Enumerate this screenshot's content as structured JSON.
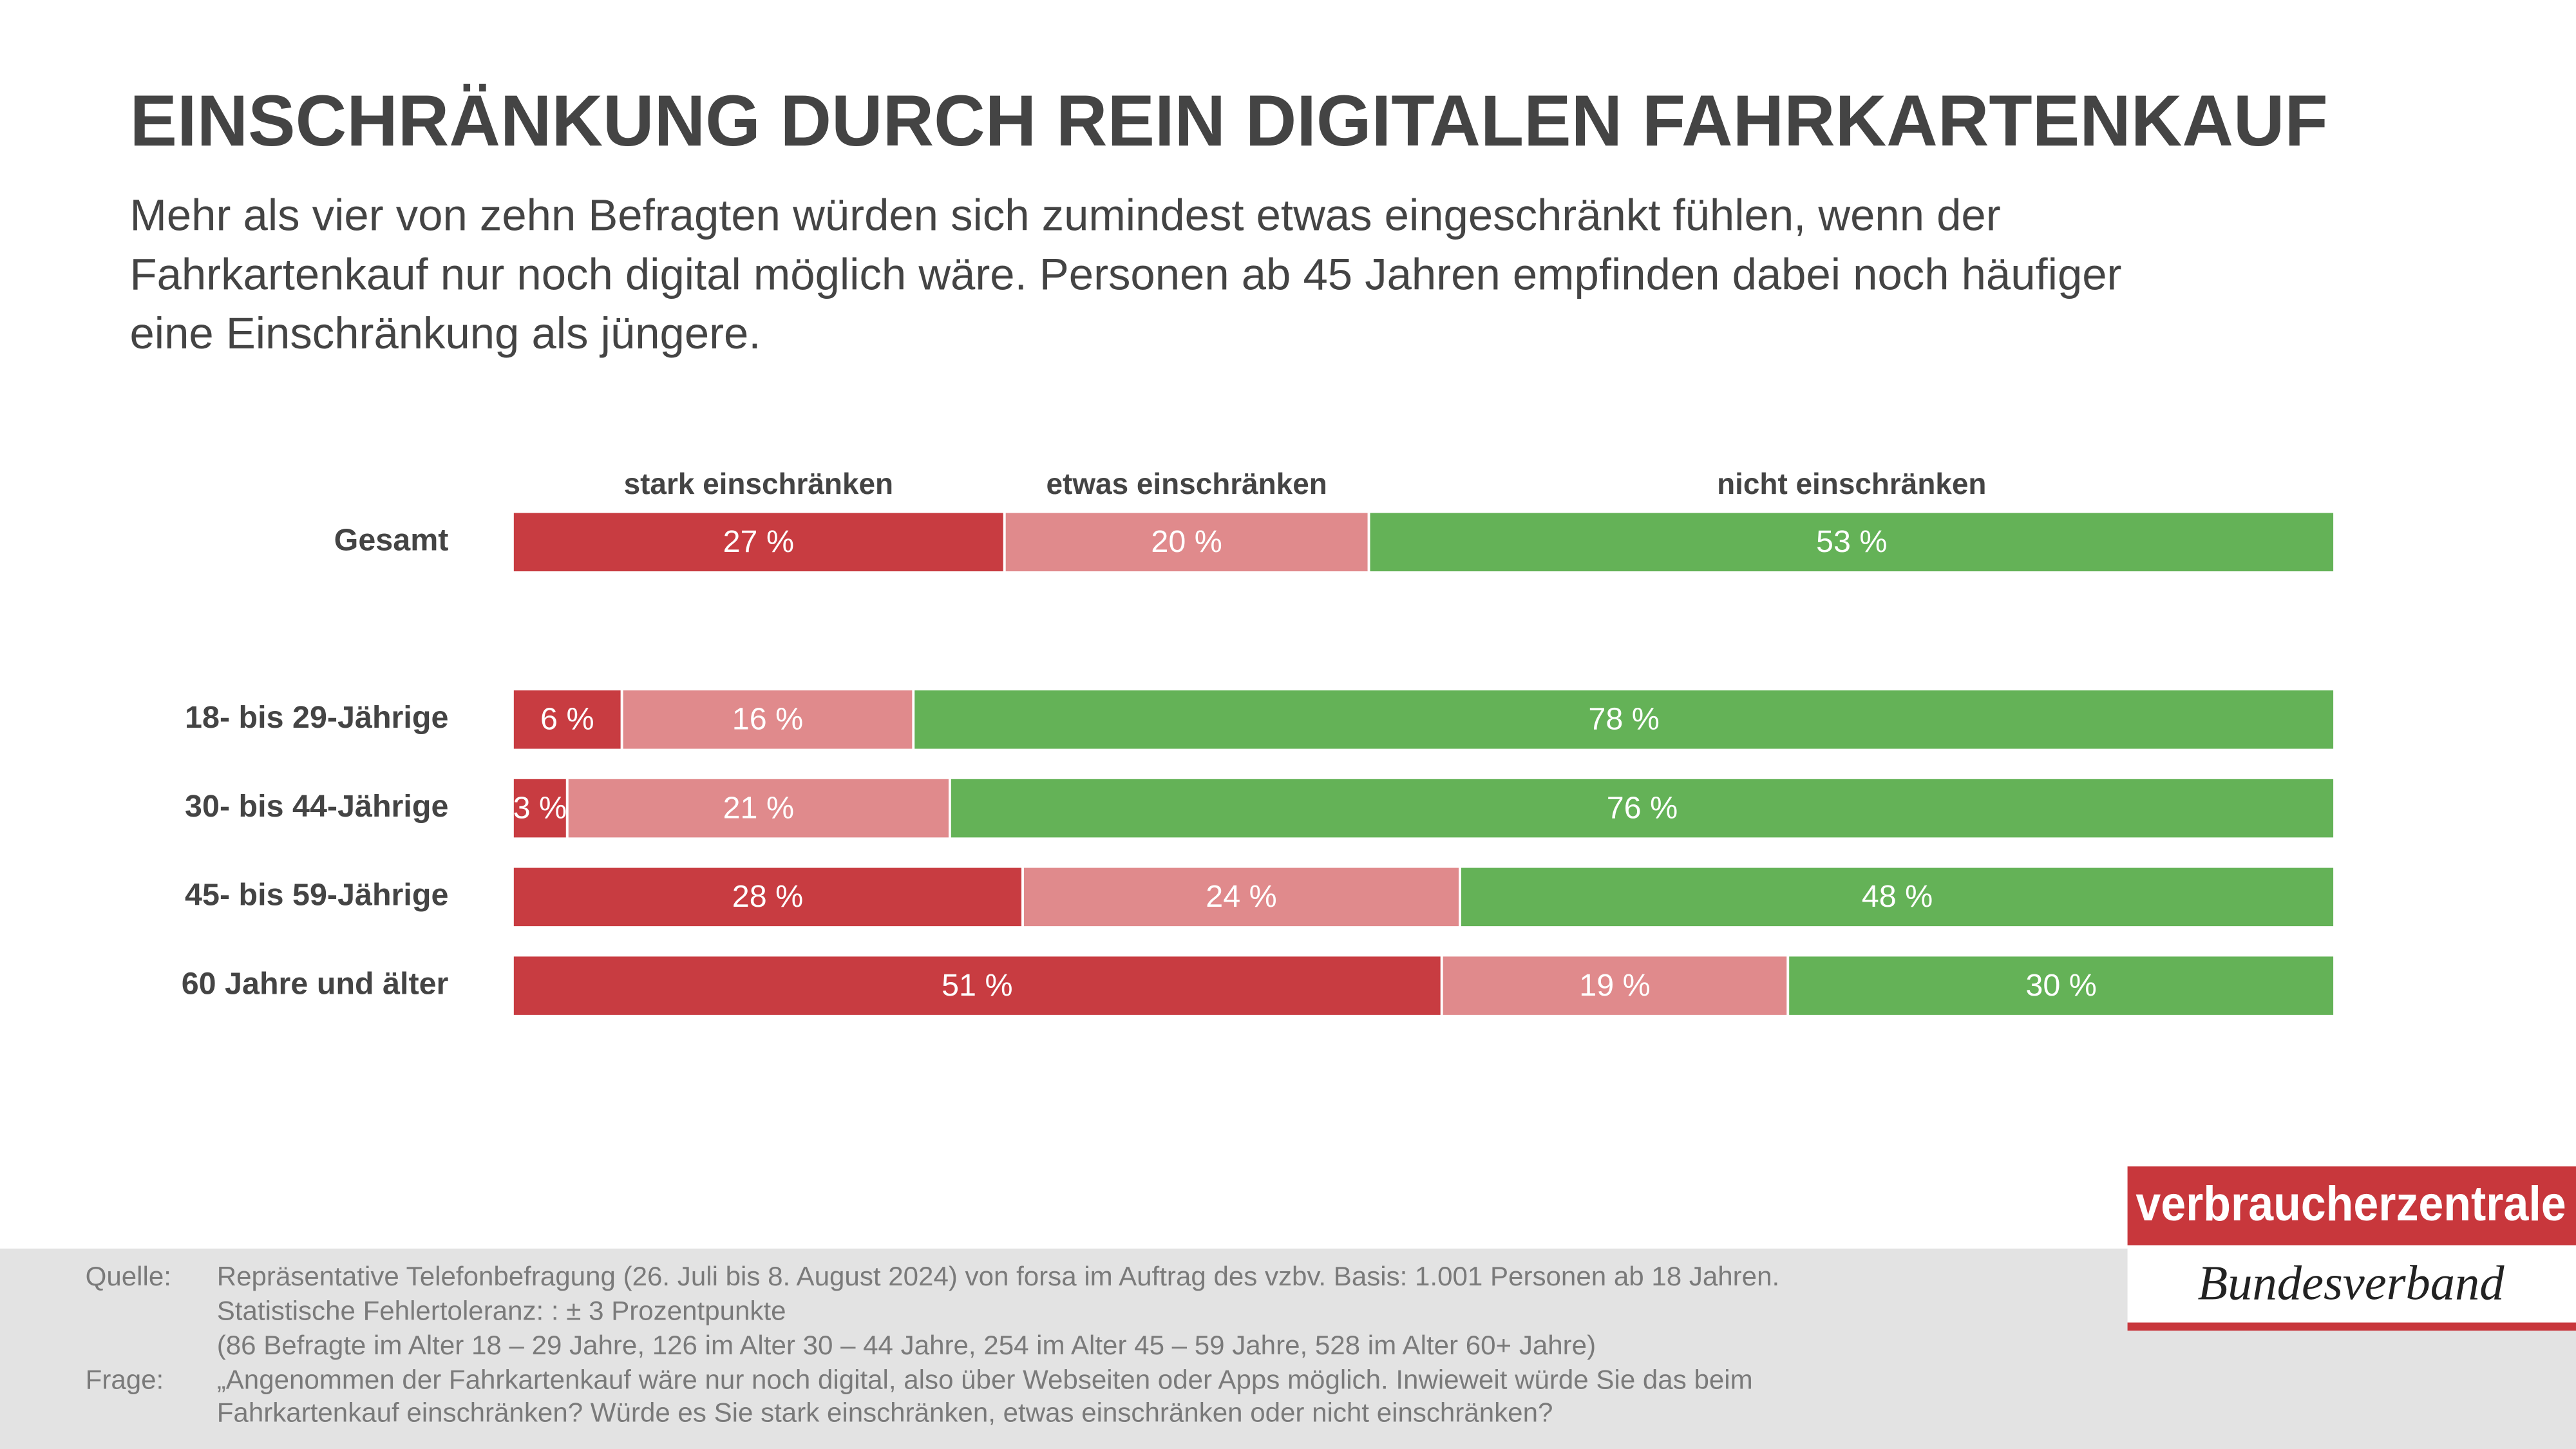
{
  "chart_data": {
    "type": "stacked-bar-horizontal",
    "title": "EINSCHRÄNKUNG DURCH REIN DIGITALEN FAHRKARTENKAUF",
    "subtitle": [
      "Mehr als vier von zehn Befragten würden sich zumindest etwas eingeschränkt fühlen, wenn der",
      "Fahrkartenkauf nur noch digital möglich wäre. Personen ab 45 Jahren empfinden dabei noch häufiger",
      "eine Einschränkung als jüngere."
    ],
    "categories": [
      "Gesamt",
      "18- bis 29-Jährige",
      "30- bis 44-Jährige",
      "45- bis 59-Jährige",
      "60 Jahre und älter"
    ],
    "xlim": [
      0,
      100
    ],
    "series": [
      {
        "name": "stark einschränken",
        "color": "#c83c41",
        "values": [
          27,
          6,
          3,
          28,
          51
        ],
        "value_labels": [
          "27 %",
          "6 %",
          "3 %",
          "28 %",
          "51 %"
        ]
      },
      {
        "name": "etwas einschränken",
        "color": "#e08a8c",
        "values": [
          20,
          16,
          21,
          24,
          19
        ],
        "value_labels": [
          "20 %",
          "16 %",
          "21 %",
          "24 %",
          "19 %"
        ]
      },
      {
        "name": "nicht einschränken",
        "color": "#64b257",
        "values": [
          53,
          78,
          76,
          48,
          30
        ],
        "value_labels": [
          "53 %",
          "78 %",
          "76 %",
          "48 %",
          "30 %"
        ]
      }
    ]
  },
  "footer": {
    "source_label": "Quelle:",
    "source_lines": [
      "Repräsentative Telefonbefragung (26. Juli bis 8. August 2024) von forsa im Auftrag des vzbv. Basis: 1.001 Personen ab 18 Jahren.",
      "Statistische Fehlertoleranz: : ± 3 Prozentpunkte",
      "(86 Befragte im Alter 18 – 29 Jahre, 126 im Alter 30 – 44 Jahre, 254 im Alter 45 – 59 Jahre, 528 im Alter 60+ Jahre)"
    ],
    "question_label": "Frage:",
    "question_lines": [
      "„Angenommen der Fahrkartenkauf wäre nur noch digital, also über Webseiten oder Apps möglich. Inwieweit würde Sie das beim",
      "Fahrkartenkauf einschränken? Würde es Sie stark einschränken, etwas einschränken oder nicht einschränken?"
    ]
  },
  "logo": {
    "name": "verbraucherzentrale",
    "subtitle": "Bundesverband"
  }
}
